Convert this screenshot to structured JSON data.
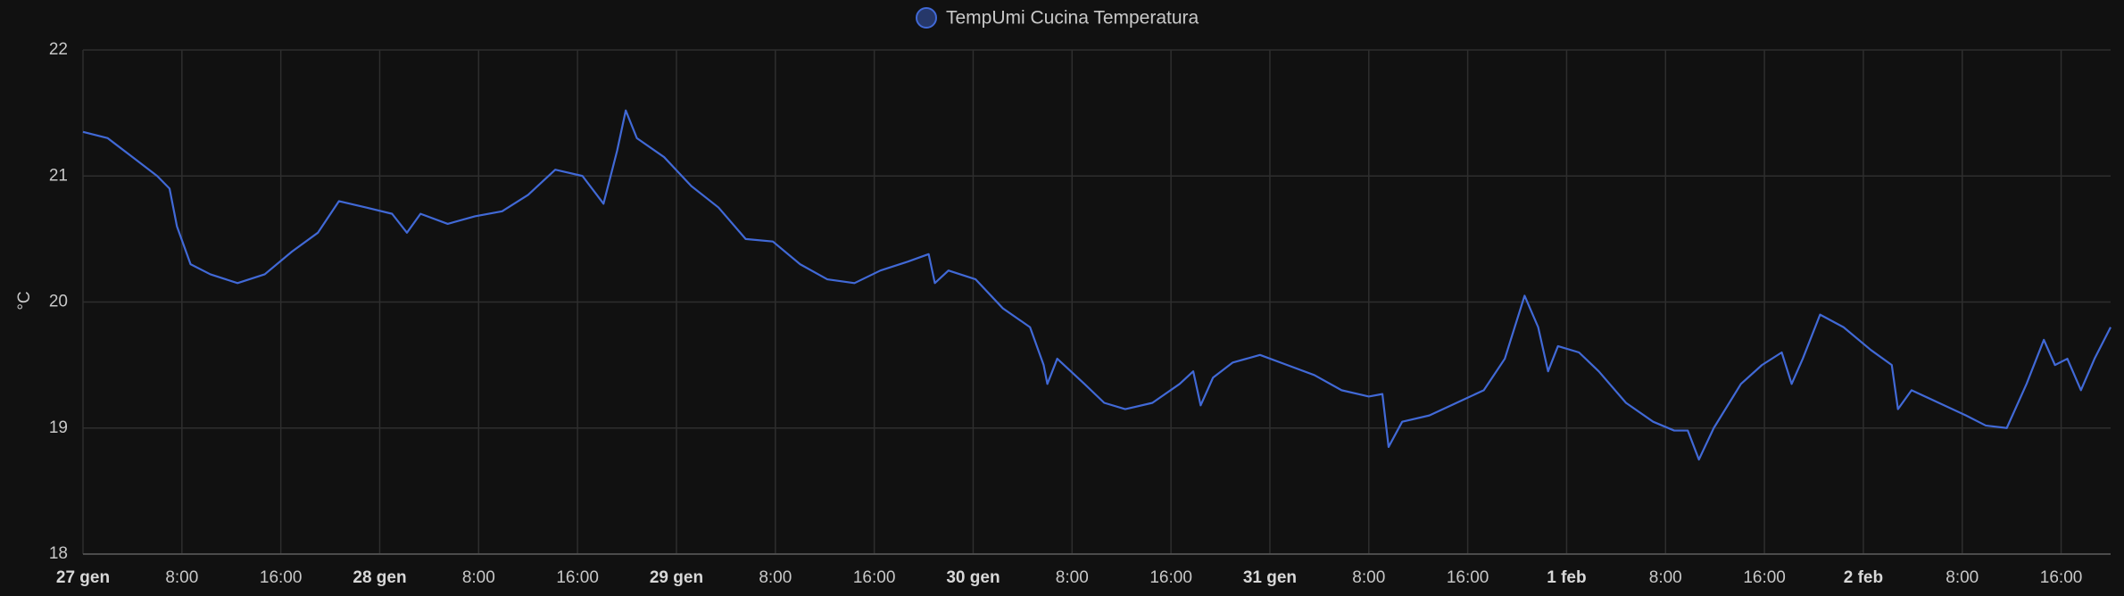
{
  "chart_data": {
    "type": "line",
    "y_label": "°C",
    "x": [
      0,
      2,
      4,
      6,
      7,
      7.6,
      8.7,
      10.3,
      12.5,
      14.7,
      16.9,
      19,
      20.7,
      22.9,
      25,
      26.2,
      27.3,
      29.5,
      31.7,
      33.9,
      36,
      38.2,
      40.4,
      42.1,
      43.2,
      43.9,
      44.8,
      47,
      49.2,
      51.4,
      53.6,
      55.8,
      58,
      60.2,
      62.4,
      64.5,
      66.7,
      68.4,
      68.9,
      70,
      72.2,
      74.4,
      76.6,
      77.7,
      78,
      78.8,
      81,
      82.6,
      84.3,
      86.5,
      88.7,
      89.8,
      90.4,
      91.4,
      93,
      95.2,
      97.4,
      99.6,
      101.8,
      104,
      105.1,
      105.6,
      106.7,
      108.9,
      111.1,
      113.3,
      115,
      116.6,
      117.7,
      118.5,
      119.3,
      121,
      122.6,
      124.8,
      127,
      128.7,
      129.8,
      130.7,
      131.9,
      134.1,
      135.8,
      137.4,
      138.2,
      139.1,
      140.5,
      142.4,
      144.6,
      146.3,
      146.8,
      147.9,
      150.1,
      152.3,
      153.9,
      155.6,
      157.2,
      158.6,
      159.5,
      160.5,
      161.6,
      162.7,
      164
    ],
    "series": [
      {
        "name": "TempUmi Cucina Temperatura",
        "color": "#4169d6",
        "values": [
          21.35,
          21.3,
          21.15,
          21.0,
          20.9,
          20.6,
          20.3,
          20.22,
          20.15,
          20.22,
          20.4,
          20.55,
          20.8,
          20.75,
          20.7,
          20.55,
          20.7,
          20.62,
          20.68,
          20.72,
          20.85,
          21.05,
          21.0,
          20.78,
          21.2,
          21.52,
          21.3,
          21.15,
          20.92,
          20.75,
          20.5,
          20.48,
          20.3,
          20.18,
          20.15,
          20.25,
          20.32,
          20.38,
          20.15,
          20.25,
          20.18,
          19.95,
          19.8,
          19.5,
          19.35,
          19.55,
          19.35,
          19.2,
          19.15,
          19.2,
          19.35,
          19.45,
          19.18,
          19.4,
          19.52,
          19.58,
          19.5,
          19.42,
          19.3,
          19.25,
          19.27,
          18.85,
          19.05,
          19.1,
          19.2,
          19.3,
          19.55,
          20.05,
          19.8,
          19.45,
          19.65,
          19.6,
          19.45,
          19.2,
          19.05,
          18.98,
          18.98,
          18.75,
          19.0,
          19.35,
          19.5,
          19.6,
          19.35,
          19.55,
          19.9,
          19.8,
          19.62,
          19.5,
          19.15,
          19.3,
          19.2,
          19.1,
          19.02,
          19.0,
          19.35,
          19.7,
          19.5,
          19.55,
          19.3,
          19.55,
          19.8
        ]
      }
    ],
    "xlim": [
      0,
      164
    ],
    "xticks": [
      {
        "value": 0,
        "label": "27 gen"
      },
      {
        "value": 8,
        "label": "8:00"
      },
      {
        "value": 16,
        "label": "16:00"
      },
      {
        "value": 24,
        "label": "28 gen"
      },
      {
        "value": 32,
        "label": "8:00"
      },
      {
        "value": 40,
        "label": "16:00"
      },
      {
        "value": 48,
        "label": "29 gen"
      },
      {
        "value": 56,
        "label": "8:00"
      },
      {
        "value": 64,
        "label": "16:00"
      },
      {
        "value": 72,
        "label": "30 gen"
      },
      {
        "value": 80,
        "label": "8:00"
      },
      {
        "value": 88,
        "label": "16:00"
      },
      {
        "value": 96,
        "label": "31 gen"
      },
      {
        "value": 104,
        "label": "8:00"
      },
      {
        "value": 112,
        "label": "16:00"
      },
      {
        "value": 120,
        "label": "1 feb"
      },
      {
        "value": 128,
        "label": "8:00"
      },
      {
        "value": 136,
        "label": "16:00"
      },
      {
        "value": 144,
        "label": "2 feb"
      },
      {
        "value": 152,
        "label": "8:00"
      },
      {
        "value": 160,
        "label": "16:00"
      }
    ],
    "ylim": [
      18,
      22
    ],
    "yticks": [
      18,
      19,
      20,
      21,
      22
    ],
    "grid": true
  }
}
